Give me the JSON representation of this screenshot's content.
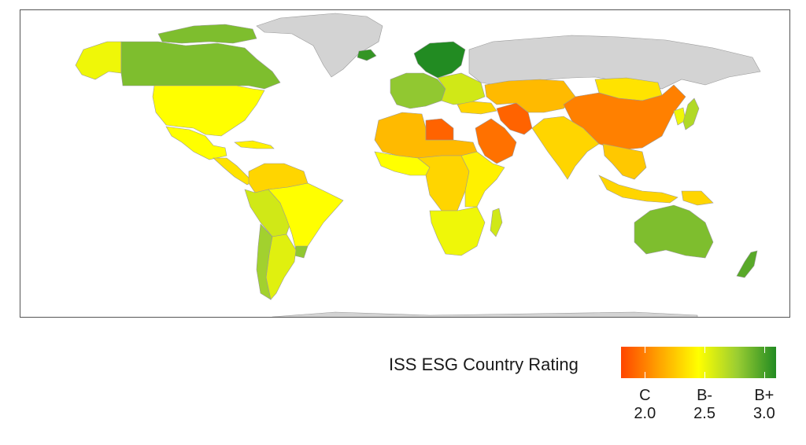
{
  "legend": {
    "title": "ISS ESG Country Rating",
    "ticks": [
      {
        "grade": "C",
        "value": "2.0"
      },
      {
        "grade": "B-",
        "value": "2.5"
      },
      {
        "grade": "B+",
        "value": "3.0"
      }
    ],
    "scale_min": 1.8,
    "scale_max": 3.1,
    "colors": [
      "#ff4500",
      "#ffa500",
      "#ffff00",
      "#9acd32",
      "#228b22"
    ]
  },
  "map": {
    "no_data_color": "#d3d3d3",
    "border_color": "#999999",
    "regions": [
      {
        "name": "Canada",
        "rating": 2.85
      },
      {
        "name": "Alaska",
        "rating": 2.5
      },
      {
        "name": "Greenland",
        "rating": null
      },
      {
        "name": "Iceland",
        "rating": 3.05
      },
      {
        "name": "Canadian Arctic",
        "rating": 2.85
      },
      {
        "name": "United States",
        "rating": 2.45
      },
      {
        "name": "Mexico",
        "rating": 2.45
      },
      {
        "name": "Central America",
        "rating": 2.35
      },
      {
        "name": "Caribbean",
        "rating": 2.4
      },
      {
        "name": "Colombia-Venezuela",
        "rating": 2.3
      },
      {
        "name": "Brazil",
        "rating": 2.45
      },
      {
        "name": "Peru-Bolivia",
        "rating": 2.6
      },
      {
        "name": "Argentina",
        "rating": 2.55
      },
      {
        "name": "Chile",
        "rating": 2.75
      },
      {
        "name": "Uruguay",
        "rating": 2.8
      },
      {
        "name": "Western Europe",
        "rating": 2.8
      },
      {
        "name": "Scandinavia",
        "rating": 3.1
      },
      {
        "name": "Eastern Europe",
        "rating": 2.6
      },
      {
        "name": "Russia",
        "rating": null
      },
      {
        "name": "North Africa",
        "rating": 2.2
      },
      {
        "name": "Libya",
        "rating": 1.9
      },
      {
        "name": "West Africa",
        "rating": 2.45
      },
      {
        "name": "Central Africa",
        "rating": 2.3
      },
      {
        "name": "East Africa",
        "rating": 2.4
      },
      {
        "name": "Southern Africa",
        "rating": 2.5
      },
      {
        "name": "Madagascar",
        "rating": 2.6
      },
      {
        "name": "Saudi Arabia",
        "rating": 1.95
      },
      {
        "name": "Iran",
        "rating": 1.9
      },
      {
        "name": "Turkey",
        "rating": 2.3
      },
      {
        "name": "Central Asia",
        "rating": 2.2
      },
      {
        "name": "Mongolia",
        "rating": 2.35
      },
      {
        "name": "China",
        "rating": 2.0
      },
      {
        "name": "India",
        "rating": 2.3
      },
      {
        "name": "Japan",
        "rating": 2.7
      },
      {
        "name": "Korea",
        "rating": 2.5
      },
      {
        "name": "Southeast Asia",
        "rating": 2.25
      },
      {
        "name": "Indonesia",
        "rating": 2.3
      },
      {
        "name": "Papua New Guinea",
        "rating": 2.3
      },
      {
        "name": "Australia",
        "rating": 2.85
      },
      {
        "name": "New Zealand",
        "rating": 2.95
      },
      {
        "name": "Antarctica",
        "rating": null
      }
    ]
  }
}
